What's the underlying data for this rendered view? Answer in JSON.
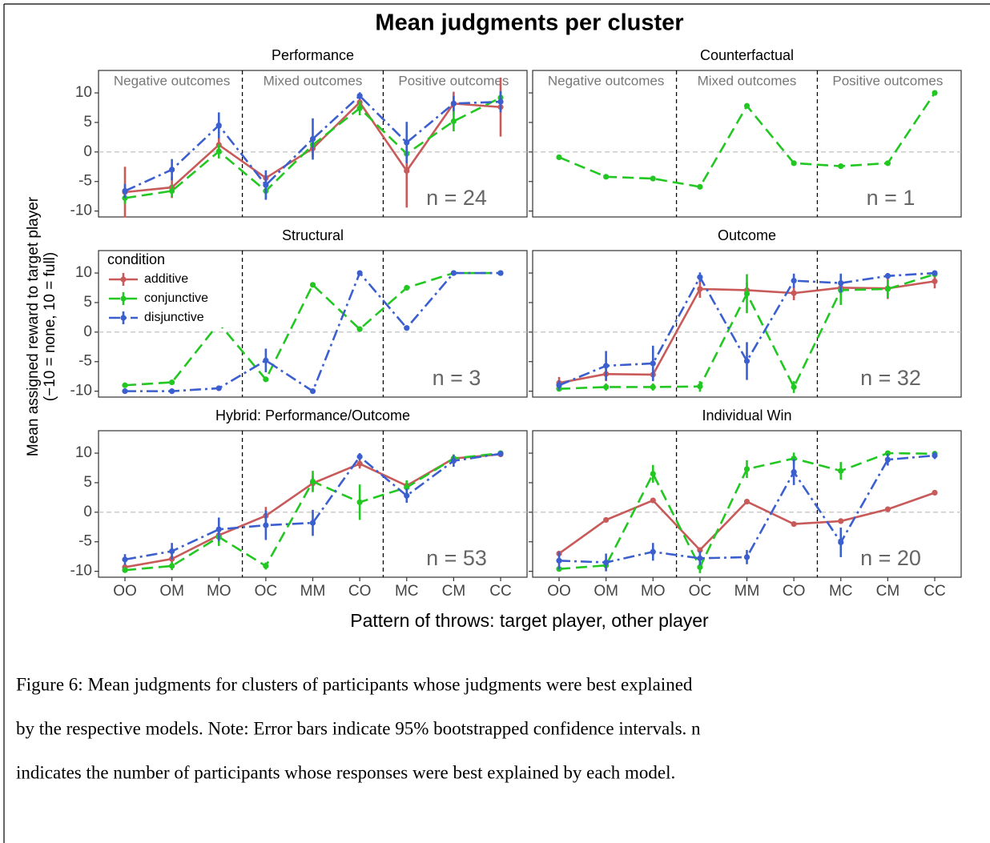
{
  "figure": {
    "title": "Mean judgments per cluster",
    "ylabel": [
      "Mean assigned reward to target player",
      "(−10 = none, 10 = full)"
    ],
    "xlabel": "Pattern of throws: target player, other player",
    "legend_title": "condition"
  },
  "chart_data": [
    {
      "type": "line",
      "title": "Performance",
      "n_label": "n = 24",
      "categories": [
        "OO",
        "OM",
        "MO",
        "OC",
        "MM",
        "CO",
        "MC",
        "CM",
        "CC"
      ],
      "ylim": [
        -11,
        13.8
      ],
      "yticks": [
        -10,
        -5,
        0,
        5,
        10
      ],
      "hline": 0,
      "sections": [
        "Negative outcomes",
        "Mixed outcomes",
        "Positive outcomes"
      ],
      "series": [
        {
          "name": "additive",
          "color": "#c85a5a",
          "linestyle": "solid",
          "values": [
            -6.8,
            -6,
            1.2,
            -4.4,
            0.6,
            8.4,
            -3.2,
            8.2,
            7.6
          ],
          "errors": [
            4.3,
            1.8,
            1.3,
            0.7,
            1.5,
            1.2,
            6.2,
            2,
            5
          ]
        },
        {
          "name": "conjunctive",
          "color": "#22c722",
          "linestyle": "dashed",
          "values": [
            -7.8,
            -6.6,
            0.1,
            -6.6,
            1.2,
            7.4,
            -0.3,
            5.2,
            9.2
          ],
          "errors": [
            1,
            1,
            1.2,
            1.3,
            1.3,
            1.2,
            1.3,
            1.7,
            1
          ]
        },
        {
          "name": "disjunctive",
          "color": "#3b5fcf",
          "linestyle": "dashdot",
          "values": [
            -6.6,
            -3,
            4.5,
            -5.6,
            2.2,
            9.5,
            1.6,
            8.2,
            8.5
          ],
          "errors": [
            1.2,
            1.8,
            2.2,
            2.5,
            3.5,
            0.6,
            3.5,
            1.3,
            1.8
          ]
        }
      ]
    },
    {
      "type": "line",
      "title": "Counterfactual",
      "n_label": "n = 1",
      "categories": [
        "OO",
        "OM",
        "MO",
        "OC",
        "MM",
        "CO",
        "MC",
        "CM",
        "CC"
      ],
      "ylim": [
        -11,
        13.8
      ],
      "yticks": [
        -10,
        -5,
        0,
        5,
        10
      ],
      "hline": 0,
      "sections": [
        "Negative outcomes",
        "Mixed outcomes",
        "Positive outcomes"
      ],
      "series": [
        {
          "name": "conjunctive",
          "color": "#22c722",
          "linestyle": "dashed",
          "values": [
            -0.9,
            -4.2,
            -4.5,
            -5.9,
            7.8,
            -1.9,
            -2.4,
            -1.9,
            10
          ]
        }
      ]
    },
    {
      "type": "line",
      "title": "Structural",
      "n_label": "n = 3",
      "categories": [
        "OO",
        "OM",
        "MO",
        "OC",
        "MM",
        "CO",
        "MC",
        "CM",
        "CC"
      ],
      "ylim": [
        -11,
        13.8
      ],
      "yticks": [
        -10,
        -5,
        0,
        5,
        10
      ],
      "hline": 0,
      "series": [
        {
          "name": "conjunctive",
          "color": "#22c722",
          "linestyle": "dashed",
          "values": [
            -9,
            -8.5,
            1.5,
            -8,
            8,
            0.5,
            7.5,
            10,
            10
          ]
        },
        {
          "name": "disjunctive",
          "color": "#3b5fcf",
          "linestyle": "dashdot",
          "values": [
            -10,
            -10,
            -9.5,
            -4.8,
            -10,
            10,
            0.7,
            10,
            10
          ],
          "errors": [
            null,
            null,
            null,
            2,
            null,
            null,
            null,
            null,
            null
          ]
        }
      ]
    },
    {
      "type": "line",
      "title": "Outcome",
      "n_label": "n = 32",
      "categories": [
        "OO",
        "OM",
        "MO",
        "OC",
        "MM",
        "CO",
        "MC",
        "CM",
        "CC"
      ],
      "ylim": [
        -11,
        13.8
      ],
      "yticks": [
        -10,
        -5,
        0,
        5,
        10
      ],
      "hline": 0,
      "series": [
        {
          "name": "additive",
          "color": "#c85a5a",
          "linestyle": "solid",
          "values": [
            -8.6,
            -7.1,
            -7.2,
            7.3,
            7.1,
            6.6,
            7.5,
            7.4,
            8.6
          ],
          "errors": [
            1,
            1.2,
            1,
            1.5,
            1.3,
            1.2,
            1.2,
            1.8,
            1.2
          ]
        },
        {
          "name": "conjunctive",
          "color": "#22c722",
          "linestyle": "dashed",
          "values": [
            -9.6,
            -9.3,
            -9.3,
            -9.2,
            6.5,
            -9.3,
            7.1,
            7.3,
            9.8
          ],
          "errors": [
            0.4,
            0.6,
            0.6,
            0.9,
            3.3,
            1,
            2.5,
            1.5,
            0.4
          ]
        },
        {
          "name": "disjunctive",
          "color": "#3b5fcf",
          "linestyle": "dashdot",
          "values": [
            -9,
            -5.7,
            -5.3,
            9.3,
            -4.9,
            8.7,
            8.3,
            9.5,
            10
          ],
          "errors": [
            0.8,
            2.5,
            3,
            0.8,
            3.2,
            1.2,
            1.6,
            0.5,
            0.2
          ]
        }
      ]
    },
    {
      "type": "line",
      "title": "Hybrid: Performance/Outcome",
      "n_label": "n = 53",
      "categories": [
        "OO",
        "OM",
        "MO",
        "OC",
        "MM",
        "CO",
        "MC",
        "CM",
        "CC"
      ],
      "ylim": [
        -11,
        13.8
      ],
      "yticks": [
        -10,
        -5,
        0,
        5,
        10
      ],
      "hline": 0,
      "series": [
        {
          "name": "additive",
          "color": "#c85a5a",
          "linestyle": "solid",
          "values": [
            -9.3,
            -7.9,
            -3.9,
            -0.6,
            4.9,
            8.2,
            4.5,
            9.1,
            9.8
          ],
          "errors": [
            0.4,
            0.9,
            1,
            1.5,
            1.2,
            0.8,
            0.8,
            0.4,
            0.3
          ]
        },
        {
          "name": "conjunctive",
          "color": "#22c722",
          "linestyle": "dashed",
          "values": [
            -9.8,
            -9.1,
            -4.2,
            -9.1,
            5.2,
            1.7,
            4.2,
            9.1,
            10
          ],
          "errors": [
            0.3,
            0.7,
            1.5,
            0.6,
            1.8,
            3,
            1.2,
            0.7,
            0.2
          ]
        },
        {
          "name": "disjunctive",
          "color": "#3b5fcf",
          "linestyle": "dashdot",
          "values": [
            -8,
            -6.6,
            -2.9,
            -2.2,
            -1.8,
            9.4,
            2.8,
            8.7,
            9.9
          ],
          "errors": [
            0.9,
            1.4,
            2,
            2.5,
            2.2,
            0.6,
            1.2,
            1,
            0.3
          ]
        }
      ]
    },
    {
      "type": "line",
      "title": "Individual Win",
      "n_label": "n = 20",
      "categories": [
        "OO",
        "OM",
        "MO",
        "OC",
        "MM",
        "CO",
        "MC",
        "CM",
        "CC"
      ],
      "ylim": [
        -11,
        13.8
      ],
      "yticks": [
        -10,
        -5,
        0,
        5,
        10
      ],
      "hline": 0,
      "series": [
        {
          "name": "additive",
          "color": "#c85a5a",
          "linestyle": "solid",
          "values": [
            -7,
            -1.3,
            2,
            -6.4,
            1.8,
            -2,
            -1.5,
            0.5,
            3.3
          ]
        },
        {
          "name": "conjunctive",
          "color": "#22c722",
          "linestyle": "dashed",
          "values": [
            -9.6,
            -9,
            6.5,
            -9.3,
            7.3,
            9.1,
            7,
            10,
            9.9
          ],
          "errors": [
            0.3,
            0.6,
            1.5,
            1,
            1.5,
            1,
            1.5,
            0.3,
            0.3
          ]
        },
        {
          "name": "disjunctive",
          "color": "#3b5fcf",
          "linestyle": "dashdot",
          "values": [
            -8.2,
            -8.5,
            -6.7,
            -7.8,
            -7.6,
            6.8,
            -5.1,
            8.9,
            9.6
          ],
          "errors": [
            1.5,
            1.5,
            1.5,
            1.2,
            1.2,
            2.2,
            2.5,
            1,
            0.6
          ]
        }
      ]
    }
  ],
  "caption": [
    "Figure 6: Mean judgments for clusters of participants whose judgments were best explained",
    "by the respective models. Note: Error bars indicate 95% bootstrapped confidence intervals. n",
    "indicates the number of participants whose responses were best explained by each model."
  ]
}
